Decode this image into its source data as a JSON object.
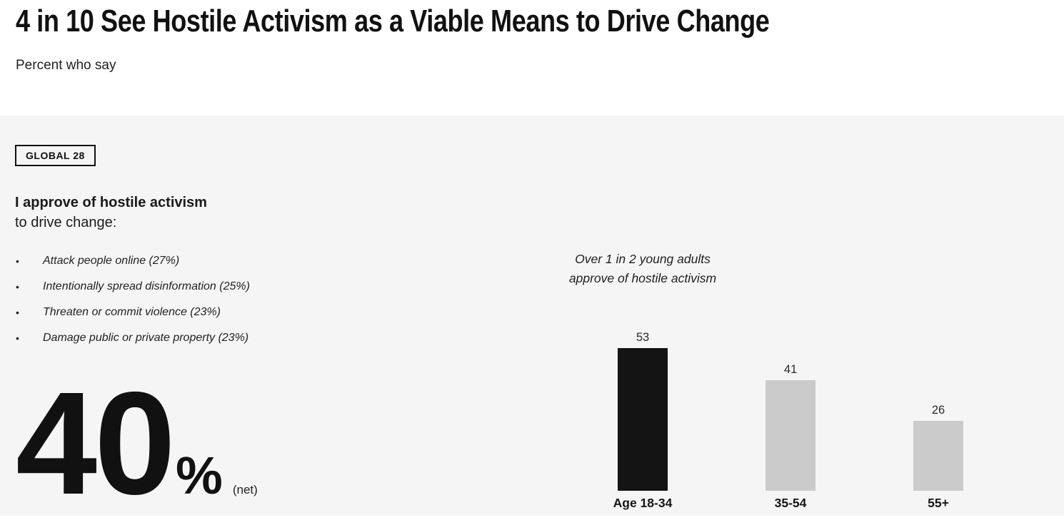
{
  "header": {
    "title": "4 in 10 See Hostile Activism as a Viable Means to Drive Change",
    "subtitle": "Percent who say"
  },
  "panel": {
    "badge": "GLOBAL 28",
    "statement_bold": "I approve of hostile activism",
    "statement_rest": "to drive change:",
    "bullets": [
      "Attack people online (27%)",
      "Intentionally spread disinformation (25%)",
      "Threaten or commit violence (23%)",
      "Damage public or private property (23%)"
    ],
    "stat": {
      "value": "40",
      "unit": "%",
      "qualifier": "(net)"
    }
  },
  "chart_data": {
    "type": "bar",
    "annotation": [
      "Over 1 in 2 young adults",
      "approve of hostile activism"
    ],
    "categories": [
      "Age 18-34",
      "35-54",
      "55+"
    ],
    "values": [
      53,
      41,
      26
    ],
    "value_labels": [
      "53",
      "41",
      "26"
    ],
    "bar_colors": [
      "#141414",
      "#cbcbcb",
      "#cbcbcb"
    ],
    "ylim": [
      0,
      60
    ],
    "grid": false,
    "legend": false,
    "title": "",
    "xlabel": "",
    "ylabel": ""
  },
  "colors": {
    "page_bg": "#ffffff",
    "section_bg": "#f5f5f5",
    "bar_black": "#141414",
    "bar_gray": "#cbcbcb",
    "text": "#1a1a1a"
  }
}
